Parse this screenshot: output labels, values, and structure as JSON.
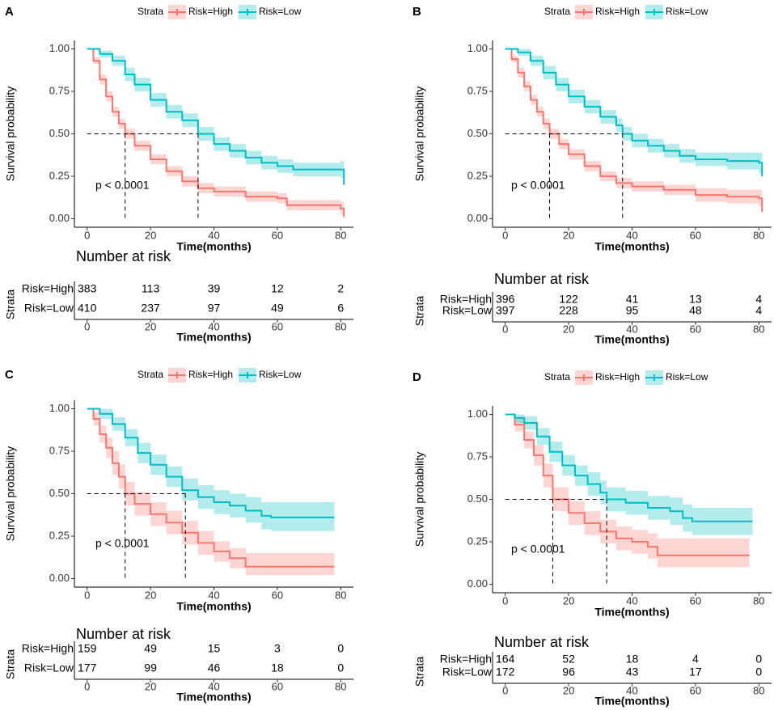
{
  "chart_data": [
    {
      "type": "survival",
      "panel": "A",
      "legend_title": "Strata",
      "ylabel": "Survival probability",
      "xlabel": "Time(months)",
      "annotation": "p < 0.0001",
      "xlim": [
        -4,
        84
      ],
      "ylim": [
        -0.05,
        1.05
      ],
      "xticks": [
        0,
        20,
        40,
        60,
        80
      ],
      "yticks": [
        {
          "value": 0,
          "label": "0.00"
        },
        {
          "value": 0.25,
          "label": "0.25"
        },
        {
          "value": 0.5,
          "label": "0.50"
        },
        {
          "value": 0.75,
          "label": "0.75"
        },
        {
          "value": 1,
          "label": "1.00"
        }
      ],
      "median_probability": 0.5,
      "median_times": [
        12,
        35
      ],
      "series": [
        {
          "name": "Risk=High",
          "color": "#F8766D",
          "x": [
            0,
            2,
            4,
            6,
            8,
            10,
            12,
            15,
            20,
            25,
            30,
            35,
            40,
            50,
            60,
            63,
            80,
            81
          ],
          "values": [
            1,
            0.93,
            0.82,
            0.72,
            0.63,
            0.56,
            0.5,
            0.43,
            0.35,
            0.28,
            0.22,
            0.18,
            0.16,
            0.13,
            0.12,
            0.08,
            0.06,
            0.01
          ],
          "lower": [
            1,
            0.91,
            0.79,
            0.69,
            0.6,
            0.53,
            0.47,
            0.4,
            0.32,
            0.25,
            0.19,
            0.15,
            0.13,
            0.1,
            0.09,
            0.05,
            0.02,
            0
          ],
          "upper": [
            1,
            0.95,
            0.85,
            0.75,
            0.66,
            0.59,
            0.53,
            0.46,
            0.38,
            0.31,
            0.25,
            0.21,
            0.19,
            0.16,
            0.15,
            0.11,
            0.1,
            0.03
          ]
        },
        {
          "name": "Risk=Low",
          "color": "#00BFC4",
          "x": [
            0,
            4,
            8,
            12,
            15,
            20,
            25,
            30,
            35,
            40,
            45,
            50,
            55,
            60,
            65,
            80,
            81
          ],
          "values": [
            1,
            0.97,
            0.93,
            0.85,
            0.79,
            0.7,
            0.63,
            0.58,
            0.5,
            0.44,
            0.4,
            0.36,
            0.33,
            0.31,
            0.29,
            0.29,
            0.2
          ],
          "lower": [
            1,
            0.95,
            0.9,
            0.81,
            0.75,
            0.66,
            0.59,
            0.54,
            0.46,
            0.4,
            0.36,
            0.32,
            0.29,
            0.27,
            0.25,
            0.24,
            0.1
          ],
          "upper": [
            1,
            0.99,
            0.96,
            0.89,
            0.83,
            0.74,
            0.67,
            0.62,
            0.54,
            0.48,
            0.44,
            0.4,
            0.37,
            0.35,
            0.33,
            0.34,
            0.3
          ]
        }
      ],
      "risk_table": {
        "title": "Number at risk",
        "ylabel": "Strata",
        "xlabel": "Time(months)",
        "times": [
          0,
          20,
          40,
          60,
          80
        ],
        "counts": [
          [
            383,
            113,
            39,
            12,
            2
          ],
          [
            410,
            237,
            97,
            49,
            6
          ]
        ]
      }
    },
    {
      "type": "survival",
      "panel": "B",
      "legend_title": "Strata",
      "ylabel": "Survival probability",
      "xlabel": "Time(months)",
      "annotation": "p < 0.0001",
      "xlim": [
        -4,
        84
      ],
      "ylim": [
        -0.05,
        1.05
      ],
      "xticks": [
        0,
        20,
        40,
        60,
        80
      ],
      "yticks": [
        {
          "value": 0,
          "label": "0.00"
        },
        {
          "value": 0.25,
          "label": "0.25"
        },
        {
          "value": 0.5,
          "label": "0.50"
        },
        {
          "value": 0.75,
          "label": "0.75"
        },
        {
          "value": 1,
          "label": "1.00"
        }
      ],
      "median_probability": 0.5,
      "median_times": [
        14,
        37
      ],
      "series": [
        {
          "name": "Risk=High",
          "color": "#F8766D",
          "x": [
            0,
            2,
            4,
            6,
            8,
            10,
            12,
            14,
            17,
            20,
            25,
            30,
            35,
            40,
            50,
            60,
            70,
            80,
            81
          ],
          "values": [
            1,
            0.94,
            0.86,
            0.78,
            0.7,
            0.63,
            0.56,
            0.5,
            0.44,
            0.38,
            0.31,
            0.25,
            0.21,
            0.19,
            0.17,
            0.14,
            0.13,
            0.12,
            0.04
          ],
          "lower": [
            1,
            0.92,
            0.83,
            0.75,
            0.67,
            0.6,
            0.53,
            0.47,
            0.41,
            0.35,
            0.28,
            0.22,
            0.18,
            0.16,
            0.14,
            0.1,
            0.09,
            0.07,
            0
          ],
          "upper": [
            1,
            0.96,
            0.89,
            0.81,
            0.73,
            0.66,
            0.59,
            0.53,
            0.47,
            0.41,
            0.34,
            0.28,
            0.24,
            0.22,
            0.2,
            0.18,
            0.17,
            0.17,
            0.08
          ]
        },
        {
          "name": "Risk=Low",
          "color": "#00BFC4",
          "x": [
            0,
            4,
            8,
            12,
            16,
            20,
            25,
            30,
            35,
            37,
            40,
            45,
            50,
            55,
            60,
            70,
            80,
            81
          ],
          "values": [
            1,
            0.98,
            0.93,
            0.86,
            0.79,
            0.72,
            0.66,
            0.6,
            0.55,
            0.5,
            0.46,
            0.43,
            0.4,
            0.37,
            0.35,
            0.34,
            0.33,
            0.25
          ],
          "lower": [
            1,
            0.96,
            0.9,
            0.82,
            0.75,
            0.68,
            0.62,
            0.56,
            0.51,
            0.46,
            0.42,
            0.39,
            0.36,
            0.33,
            0.31,
            0.29,
            0.27,
            0.1
          ],
          "upper": [
            1,
            1,
            0.96,
            0.9,
            0.83,
            0.76,
            0.7,
            0.64,
            0.59,
            0.54,
            0.5,
            0.47,
            0.44,
            0.41,
            0.39,
            0.39,
            0.39,
            0.4
          ]
        }
      ],
      "risk_table": {
        "title": "Number at risk",
        "ylabel": "Strata",
        "xlabel": "Time(months)",
        "times": [
          0,
          20,
          40,
          60,
          80
        ],
        "counts": [
          [
            396,
            122,
            41,
            13,
            4
          ],
          [
            397,
            228,
            95,
            48,
            4
          ]
        ]
      }
    },
    {
      "type": "survival",
      "panel": "C",
      "legend_title": "Strata",
      "ylabel": "Survival probability",
      "xlabel": "Time(months)",
      "annotation": "p < 0.0001",
      "xlim": [
        -4,
        84
      ],
      "ylim": [
        -0.05,
        1.05
      ],
      "xticks": [
        0,
        20,
        40,
        60,
        80
      ],
      "yticks": [
        {
          "value": 0,
          "label": "0.00"
        },
        {
          "value": 0.25,
          "label": "0.25"
        },
        {
          "value": 0.5,
          "label": "0.50"
        },
        {
          "value": 0.75,
          "label": "0.75"
        },
        {
          "value": 1,
          "label": "1.00"
        }
      ],
      "median_probability": 0.5,
      "median_times": [
        12,
        31
      ],
      "series": [
        {
          "name": "Risk=High",
          "color": "#F8766D",
          "x": [
            0,
            2,
            4,
            6,
            8,
            10,
            12,
            15,
            20,
            25,
            30,
            35,
            40,
            45,
            50,
            78
          ],
          "values": [
            1,
            0.94,
            0.85,
            0.77,
            0.68,
            0.6,
            0.5,
            0.44,
            0.38,
            0.33,
            0.27,
            0.21,
            0.16,
            0.12,
            0.07,
            0.07
          ],
          "lower": [
            1,
            0.9,
            0.8,
            0.71,
            0.61,
            0.53,
            0.43,
            0.37,
            0.31,
            0.26,
            0.2,
            0.14,
            0.1,
            0.06,
            0.02,
            0.02
          ],
          "upper": [
            1,
            0.98,
            0.9,
            0.83,
            0.75,
            0.67,
            0.57,
            0.51,
            0.45,
            0.4,
            0.34,
            0.28,
            0.22,
            0.18,
            0.15,
            0.15
          ]
        },
        {
          "name": "Risk=Low",
          "color": "#00BFC4",
          "x": [
            0,
            4,
            8,
            12,
            16,
            20,
            25,
            30,
            35,
            40,
            45,
            50,
            55,
            58,
            78
          ],
          "values": [
            1,
            0.97,
            0.91,
            0.83,
            0.74,
            0.67,
            0.6,
            0.52,
            0.48,
            0.45,
            0.43,
            0.4,
            0.37,
            0.36,
            0.36
          ],
          "lower": [
            1,
            0.94,
            0.87,
            0.78,
            0.68,
            0.61,
            0.54,
            0.46,
            0.41,
            0.38,
            0.36,
            0.33,
            0.29,
            0.28,
            0.27
          ],
          "upper": [
            1,
            1,
            0.95,
            0.88,
            0.8,
            0.73,
            0.66,
            0.59,
            0.55,
            0.52,
            0.5,
            0.48,
            0.45,
            0.45,
            0.46
          ]
        }
      ],
      "risk_table": {
        "title": "Number at risk",
        "ylabel": "Strata",
        "xlabel": "Time(months)",
        "times": [
          0,
          20,
          40,
          60,
          80
        ],
        "counts": [
          [
            159,
            49,
            15,
            3,
            0
          ],
          [
            177,
            99,
            46,
            18,
            0
          ]
        ]
      }
    },
    {
      "type": "survival",
      "panel": "D",
      "legend_title": "Strata",
      "ylabel": "Survival probability",
      "xlabel": "Time(months)",
      "annotation": "p < 0.0001",
      "xlim": [
        -4,
        84
      ],
      "ylim": [
        -0.05,
        1.05
      ],
      "xticks": [
        0,
        20,
        40,
        60,
        80
      ],
      "yticks": [
        {
          "value": 0,
          "label": "0.00"
        },
        {
          "value": 0.25,
          "label": "0.25"
        },
        {
          "value": 0.5,
          "label": "0.50"
        },
        {
          "value": 0.75,
          "label": "0.75"
        },
        {
          "value": 1,
          "label": "1.00"
        }
      ],
      "median_probability": 0.5,
      "median_times": [
        15,
        32
      ],
      "series": [
        {
          "name": "Risk=High",
          "color": "#F8766D",
          "x": [
            0,
            3,
            6,
            9,
            12,
            15,
            20,
            25,
            30,
            35,
            40,
            45,
            48,
            77
          ],
          "values": [
            1,
            0.94,
            0.85,
            0.76,
            0.64,
            0.5,
            0.42,
            0.36,
            0.31,
            0.27,
            0.25,
            0.22,
            0.17,
            0.17
          ],
          "lower": [
            1,
            0.9,
            0.8,
            0.7,
            0.57,
            0.43,
            0.35,
            0.29,
            0.24,
            0.2,
            0.18,
            0.15,
            0.1,
            0.09
          ],
          "upper": [
            1,
            0.98,
            0.9,
            0.82,
            0.71,
            0.57,
            0.49,
            0.43,
            0.38,
            0.34,
            0.32,
            0.3,
            0.27,
            0.27
          ]
        },
        {
          "name": "Risk=Low",
          "color": "#00BFC4",
          "x": [
            0,
            3,
            6,
            10,
            14,
            18,
            22,
            26,
            30,
            32,
            38,
            45,
            52,
            56,
            59,
            78
          ],
          "values": [
            1,
            0.98,
            0.95,
            0.87,
            0.78,
            0.7,
            0.64,
            0.59,
            0.54,
            0.5,
            0.48,
            0.45,
            0.43,
            0.39,
            0.37,
            0.37
          ],
          "lower": [
            1,
            0.95,
            0.91,
            0.82,
            0.72,
            0.64,
            0.58,
            0.52,
            0.47,
            0.43,
            0.41,
            0.38,
            0.35,
            0.31,
            0.29,
            0.29
          ],
          "upper": [
            1,
            1,
            0.99,
            0.92,
            0.84,
            0.76,
            0.7,
            0.66,
            0.61,
            0.57,
            0.55,
            0.52,
            0.51,
            0.47,
            0.45,
            0.45
          ]
        }
      ],
      "risk_table": {
        "title": "Number at risk",
        "ylabel": "Strata",
        "xlabel": "Time(months)",
        "times": [
          0,
          20,
          40,
          60,
          80
        ],
        "counts": [
          [
            164,
            52,
            18,
            4,
            0
          ],
          [
            172,
            96,
            43,
            17,
            0
          ]
        ]
      }
    }
  ]
}
